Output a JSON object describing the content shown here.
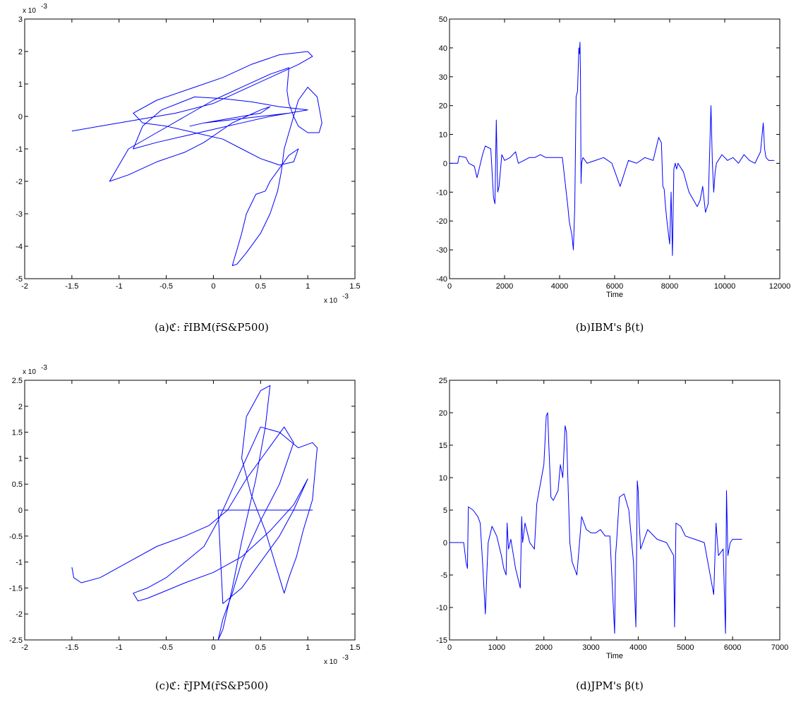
{
  "captions": {
    "a": "(a)ℭ: r̄IBM(r̄S&P500)",
    "b": "(b)IBM's β(t)",
    "c": "(c)ℭ: r̄JPM(r̄S&P500)",
    "d": "(d)JPM's β(t)"
  },
  "chart_data": [
    {
      "id": "a",
      "type": "line",
      "xlim": [
        -2,
        1.5
      ],
      "ylim": [
        -5,
        3
      ],
      "xticks": [
        "-2",
        "-1.5",
        "-1",
        "-0.5",
        "0",
        "0.5",
        "1",
        "1.5"
      ],
      "yticks": [
        "-5",
        "-4",
        "-3",
        "-2",
        "-1",
        "0",
        "1",
        "2",
        "3"
      ],
      "x_multiplier": "x 10",
      "y_multiplier": "x 10",
      "multiplier_exp": "-3",
      "xlabel": "",
      "color": "#0000ff",
      "series": [
        {
          "x": [
            -1.5,
            -1.2,
            -0.8,
            -0.4,
            0.0,
            0.3,
            0.6,
            0.9,
            1.05,
            1.0,
            0.7,
            0.4,
            0.1,
            -0.2,
            -0.6,
            -0.85,
            -0.75,
            -0.5,
            -0.2,
            0.1,
            0.3,
            0.5,
            0.7,
            0.85,
            0.9,
            0.8,
            0.7,
            0.6,
            0.55,
            0.45,
            0.35,
            0.3,
            0.25,
            0.22,
            0.2,
            0.25,
            0.35,
            0.5,
            0.6,
            0.68,
            0.72,
            0.75,
            0.8,
            0.85,
            0.9,
            1.0,
            1.1,
            1.15,
            1.12,
            1.0,
            0.9,
            0.85,
            0.8,
            0.78,
            0.8,
            0.6,
            0.3,
            0.0,
            -0.3,
            -0.6,
            -0.9,
            -1.1,
            -0.9,
            -0.6,
            -0.3,
            -0.1,
            0.05,
            0.2,
            0.35,
            0.5,
            0.6,
            0.5,
            0.3,
            0.1,
            -0.1,
            -0.25,
            -0.1,
            0.2,
            0.5,
            0.8,
            1.0,
            0.7,
            0.4,
            0.1,
            -0.2,
            -0.55,
            -0.75,
            -0.85,
            -0.6,
            -0.3,
            0.0,
            0.3,
            0.6,
            0.8
          ],
          "y": [
            -0.45,
            -0.3,
            -0.1,
            0.1,
            0.4,
            0.8,
            1.2,
            1.6,
            1.85,
            2.0,
            1.9,
            1.6,
            1.2,
            0.9,
            0.5,
            0.1,
            -0.2,
            -0.3,
            -0.5,
            -0.7,
            -1.0,
            -1.3,
            -1.5,
            -1.4,
            -1.0,
            -1.2,
            -1.6,
            -2.0,
            -2.3,
            -2.4,
            -3.0,
            -3.6,
            -4.1,
            -4.4,
            -4.6,
            -4.55,
            -4.2,
            -3.6,
            -3.0,
            -2.3,
            -1.7,
            -1.0,
            -0.5,
            0.0,
            0.5,
            0.9,
            0.6,
            -0.2,
            -0.5,
            -0.5,
            -0.3,
            0.0,
            0.4,
            0.8,
            1.5,
            1.3,
            0.9,
            0.5,
            0.0,
            -0.5,
            -1.0,
            -2.0,
            -1.8,
            -1.4,
            -1.1,
            -0.8,
            -0.5,
            -0.2,
            0.0,
            0.2,
            0.3,
            0.1,
            0.0,
            -0.1,
            -0.2,
            -0.3,
            -0.2,
            -0.1,
            0.0,
            0.1,
            0.2,
            0.3,
            0.45,
            0.55,
            0.6,
            0.2,
            -0.3,
            -1.0,
            -0.8,
            -0.6,
            -0.4,
            -0.2,
            0.0,
            0.1
          ]
        }
      ]
    },
    {
      "id": "b",
      "type": "line",
      "xlim": [
        0,
        12000
      ],
      "ylim": [
        -40,
        50
      ],
      "xticks": [
        "0",
        "2000",
        "4000",
        "6000",
        "8000",
        "10000",
        "12000"
      ],
      "yticks": [
        "-40",
        "-30",
        "-20",
        "-10",
        "0",
        "10",
        "20",
        "30",
        "40",
        "50"
      ],
      "xlabel": "Time",
      "color": "#0000ff",
      "series": [
        {
          "x": [
            0,
            300,
            350,
            600,
            700,
            900,
            1000,
            1200,
            1300,
            1500,
            1600,
            1650,
            1700,
            1750,
            1800,
            1900,
            2000,
            2200,
            2400,
            2500,
            2700,
            2900,
            3100,
            3300,
            3500,
            3700,
            3900,
            4100,
            4300,
            4350,
            4450,
            4500,
            4550,
            4600,
            4650,
            4700,
            4720,
            4740,
            4760,
            4780,
            4800,
            4850,
            5000,
            5300,
            5600,
            5900,
            6200,
            6500,
            6800,
            7100,
            7400,
            7600,
            7700,
            7750,
            7800,
            7850,
            7900,
            8000,
            8050,
            8100,
            8150,
            8200,
            8250,
            8300,
            8500,
            8700,
            9000,
            9100,
            9200,
            9300,
            9400,
            9500,
            9550,
            9600,
            9650,
            9700,
            9900,
            10100,
            10300,
            10500,
            10700,
            10900,
            11100,
            11300,
            11400,
            11450,
            11500,
            11600,
            11800
          ],
          "y": [
            0,
            0,
            2.5,
            2,
            0,
            -1,
            -5,
            3,
            6,
            5,
            -12,
            -14,
            15,
            -10,
            -8,
            3,
            1,
            2,
            4,
            0,
            1,
            2,
            2,
            3,
            2,
            2,
            2,
            2,
            -15,
            -20,
            -25,
            -30,
            -15,
            23,
            25,
            40,
            38,
            42,
            30,
            -7,
            0,
            2,
            0,
            1,
            2,
            0,
            -8,
            1,
            0,
            2,
            1,
            9,
            7,
            -8,
            -9,
            -15,
            -20,
            -28,
            -10,
            -32,
            -2,
            0,
            -2,
            0,
            -3,
            -10,
            -15,
            -13,
            -8,
            -17,
            -14,
            20,
            0,
            -10,
            -3,
            0,
            3,
            1,
            2,
            0,
            3,
            1,
            0,
            4,
            14,
            5,
            2,
            1,
            1
          ]
        }
      ]
    },
    {
      "id": "c",
      "type": "line",
      "xlim": [
        -2,
        1.5
      ],
      "ylim": [
        -2.5,
        2.5
      ],
      "xticks": [
        "-2",
        "-1.5",
        "-1",
        "-0.5",
        "0",
        "0.5",
        "1",
        "1.5"
      ],
      "yticks": [
        "-2.5",
        "-2",
        "-1.5",
        "-1",
        "-0.5",
        "0",
        "0.5",
        "1",
        "1.5",
        "2",
        "2.5"
      ],
      "x_multiplier": "x 10",
      "y_multiplier": "x 10",
      "multiplier_exp": "-3",
      "xlabel": "",
      "color": "#0000ff",
      "series": [
        {
          "x": [
            -1.5,
            -1.48,
            -1.4,
            -1.2,
            -0.9,
            -0.6,
            -0.3,
            -0.05,
            0.15,
            0.35,
            0.55,
            0.75,
            0.85,
            0.7,
            0.5,
            0.3,
            0.2,
            0.1,
            0.05,
            0.1,
            0.2,
            0.3,
            0.45,
            0.55,
            0.6,
            0.5,
            0.35,
            0.3,
            0.4,
            0.55,
            0.65,
            0.7,
            0.75,
            0.8,
            0.88,
            0.95,
            1.05,
            1.1,
            1.05,
            0.9,
            0.7,
            0.5,
            0.3,
            0.15,
            0.05,
            -0.1,
            -0.3,
            -0.5,
            -0.7,
            -0.85,
            -0.8,
            -0.7,
            -0.5,
            -0.3,
            0.0,
            0.3,
            0.6,
            0.85,
            1.0,
            0.85,
            0.7,
            0.5,
            0.3,
            0.1,
            0.05,
            1.05,
            0.9,
            0.7,
            0.55,
            0.4,
            0.25,
            0.15,
            0.1
          ],
          "y": [
            -1.1,
            -1.3,
            -1.4,
            -1.3,
            -1.0,
            -0.7,
            -0.5,
            -0.3,
            0.0,
            0.6,
            1.1,
            1.6,
            1.3,
            0.5,
            -0.2,
            -1.0,
            -1.6,
            -2.1,
            -2.5,
            -2.3,
            -1.5,
            -0.6,
            0.6,
            1.6,
            2.4,
            2.3,
            1.8,
            1.0,
            0.3,
            -0.4,
            -1.0,
            -1.3,
            -1.6,
            -1.3,
            -0.9,
            -0.4,
            0.2,
            1.2,
            1.3,
            1.2,
            1.5,
            1.6,
            0.8,
            0.2,
            -0.2,
            -0.7,
            -1.0,
            -1.3,
            -1.5,
            -1.6,
            -1.75,
            -1.7,
            -1.55,
            -1.4,
            -1.2,
            -0.9,
            -0.4,
            0.1,
            0.6,
            0.0,
            -0.5,
            -1.0,
            -1.5,
            -1.8,
            0.0,
            0.0,
            0.0,
            0.0,
            0.0,
            0.0,
            0.0,
            0.0,
            0.0
          ]
        }
      ]
    },
    {
      "id": "d",
      "type": "line",
      "xlim": [
        0,
        7000
      ],
      "ylim": [
        -15,
        25
      ],
      "xticks": [
        "0",
        "1000",
        "2000",
        "3000",
        "4000",
        "5000",
        "6000",
        "7000"
      ],
      "yticks": [
        "-15",
        "-10",
        "-5",
        "0",
        "5",
        "10",
        "15",
        "20",
        "25"
      ],
      "xlabel": "Time",
      "color": "#0000ff",
      "series": [
        {
          "x": [
            0,
            300,
            350,
            380,
            400,
            500,
            600,
            650,
            700,
            760,
            790,
            820,
            900,
            1000,
            1100,
            1150,
            1200,
            1220,
            1250,
            1300,
            1400,
            1500,
            1530,
            1550,
            1600,
            1700,
            1800,
            1850,
            1900,
            1950,
            2000,
            2050,
            2080,
            2100,
            2150,
            2200,
            2300,
            2350,
            2400,
            2450,
            2480,
            2500,
            2550,
            2600,
            2700,
            2800,
            2900,
            3000,
            3100,
            3200,
            3300,
            3400,
            3500,
            3520,
            3540,
            3600,
            3700,
            3800,
            3900,
            3950,
            3980,
            4000,
            4020,
            4050,
            4100,
            4200,
            4400,
            4600,
            4750,
            4770,
            4800,
            4900,
            5000,
            5200,
            5400,
            5500,
            5600,
            5650,
            5680,
            5700,
            5800,
            5850,
            5870,
            5900,
            5950,
            6000,
            6100,
            6200
          ],
          "y": [
            0,
            0,
            -3,
            -4,
            5.5,
            5,
            4,
            3,
            -3,
            -11,
            -5,
            0,
            2.5,
            1,
            -2,
            -4,
            -5,
            3,
            -1,
            0.5,
            -4,
            -7,
            4,
            0,
            3,
            0,
            -1,
            6,
            8,
            10,
            12,
            19.5,
            20,
            16,
            7,
            6.5,
            8,
            12,
            10,
            18,
            17,
            12,
            0,
            -3,
            -5,
            4,
            2,
            1.5,
            1.5,
            2,
            1,
            1,
            -14,
            -2,
            0,
            7,
            7.5,
            5,
            -3,
            -13,
            9.5,
            8,
            3,
            -1,
            0,
            2,
            0.5,
            0,
            -2,
            -13,
            3,
            2.5,
            1,
            0.5,
            0,
            -4,
            -8,
            3,
            0,
            -2,
            -1,
            -14,
            8,
            -2,
            0,
            0.5,
            0.5,
            0.5
          ]
        }
      ]
    }
  ]
}
